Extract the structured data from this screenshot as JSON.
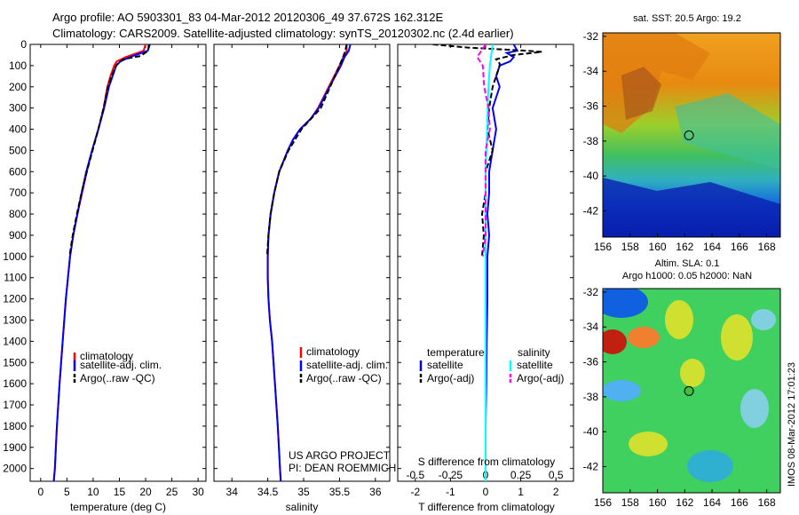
{
  "header": {
    "line1": "Argo profile: AO 5903301_83 04-Mar-2012 20120306_49 37.672S 162.312E",
    "line2": "Climatology: CARS2009. Satellite-adjusted climatology: synTS_20120302.nc (2.4d earlier)"
  },
  "colors": {
    "climatology": "#ff0000",
    "satellite": "#0000ff",
    "argo": "#000000",
    "sal_satellite": "#00ffff",
    "sal_argo": "#ff00ff"
  },
  "chart_data": [
    {
      "id": "temperature",
      "type": "line",
      "xlabel": "temperature (deg C)",
      "ylabel": "",
      "xlim": [
        -2,
        31.5
      ],
      "ylim": [
        2060,
        0
      ],
      "xticks": [
        "0",
        "5",
        "10",
        "15",
        "20",
        "25",
        "30"
      ],
      "yticks": [
        "0",
        "100",
        "200",
        "300",
        "400",
        "500",
        "600",
        "700",
        "800",
        "900",
        "1000",
        "1100",
        "1200",
        "1300",
        "1400",
        "1500",
        "1600",
        "1700",
        "1800",
        "1900",
        "2000"
      ],
      "legend": [
        "climatology",
        "satellite-adj. clim.",
        "Argo(..raw -QC)"
      ],
      "series": [
        {
          "name": "climatology",
          "depth": [
            0,
            30,
            60,
            80,
            100,
            150,
            200,
            300,
            400,
            500,
            600,
            700,
            800,
            900,
            1000,
            1200,
            1400,
            1600,
            1800,
            2000,
            2060
          ],
          "values": [
            20.0,
            19.6,
            16.2,
            14.5,
            14.0,
            13.3,
            12.7,
            12.0,
            11.0,
            9.8,
            8.8,
            7.9,
            7.0,
            6.2,
            5.6,
            4.8,
            4.2,
            3.6,
            3.1,
            2.7,
            2.5
          ]
        },
        {
          "name": "satellite-adj. clim.",
          "depth": [
            0,
            30,
            60,
            80,
            100,
            150,
            200,
            300,
            400,
            500,
            600,
            700,
            800,
            900,
            1000,
            1200,
            1400,
            1600,
            1800,
            2000,
            2060
          ],
          "values": [
            20.8,
            20.4,
            17.0,
            15.2,
            14.4,
            13.7,
            13.0,
            12.1,
            11.0,
            9.8,
            8.7,
            7.8,
            7.0,
            6.2,
            5.6,
            4.8,
            4.2,
            3.6,
            3.1,
            2.7,
            2.5
          ]
        },
        {
          "name": "Argo(..raw -QC)",
          "depth": [
            0,
            30,
            55,
            70,
            85,
            100,
            150,
            200,
            300,
            400,
            500,
            600,
            700,
            800,
            900,
            1000
          ],
          "values": [
            20.6,
            20.5,
            19.0,
            15.8,
            14.9,
            14.4,
            13.5,
            12.8,
            12.0,
            11.0,
            9.9,
            8.8,
            7.8,
            6.9,
            6.1,
            5.5
          ]
        }
      ]
    },
    {
      "id": "salinity",
      "type": "line",
      "xlabel": "salinity",
      "xlim": [
        33.75,
        36.2
      ],
      "ylim": [
        2060,
        0
      ],
      "xticks": [
        "34",
        "34.5",
        "35",
        "35.5",
        "36"
      ],
      "legend": [
        "climatology",
        "satellite-adj. clim.",
        "Argo(..raw -QC)"
      ],
      "series": [
        {
          "name": "climatology",
          "depth": [
            0,
            30,
            60,
            100,
            200,
            300,
            350,
            400,
            450,
            500,
            600,
            700,
            800,
            900,
            1000,
            1100,
            1200,
            1300,
            1400,
            1600,
            1800,
            2000,
            2060
          ],
          "values": [
            35.6,
            35.6,
            35.55,
            35.5,
            35.35,
            35.2,
            35.1,
            34.95,
            34.85,
            34.78,
            34.66,
            34.59,
            34.54,
            34.51,
            34.5,
            34.5,
            34.51,
            34.53,
            34.56,
            34.6,
            34.64,
            34.67,
            34.68
          ]
        },
        {
          "name": "satellite-adj. clim.",
          "depth": [
            0,
            30,
            60,
            100,
            200,
            300,
            350,
            400,
            450,
            500,
            600,
            700,
            800,
            900,
            1000,
            1100,
            1200,
            1300,
            1400,
            1600,
            1800,
            2000,
            2060
          ],
          "values": [
            35.65,
            35.63,
            35.57,
            35.52,
            35.36,
            35.21,
            35.1,
            34.95,
            34.85,
            34.78,
            34.66,
            34.59,
            34.54,
            34.51,
            34.5,
            34.5,
            34.51,
            34.53,
            34.56,
            34.6,
            34.64,
            34.67,
            34.68
          ]
        },
        {
          "name": "Argo(..raw -QC)",
          "depth": [
            0,
            30,
            60,
            100,
            200,
            300,
            400,
            500,
            600,
            700,
            800,
            900,
            1000
          ],
          "values": [
            35.6,
            35.58,
            35.55,
            35.5,
            35.37,
            35.24,
            34.97,
            34.79,
            34.66,
            34.59,
            34.54,
            34.51,
            34.49
          ]
        }
      ]
    },
    {
      "id": "difference",
      "type": "line",
      "xlabel": "T difference from climatology",
      "x2label": "S difference from climatology",
      "xlim": [
        -2.5,
        2.5
      ],
      "x2lim": [
        -0.625,
        0.625
      ],
      "ylim": [
        2060,
        0
      ],
      "xticks": [
        "-2",
        "-1",
        "0",
        "1",
        "2"
      ],
      "x2ticks": [
        "-0.5",
        "-0.25",
        "0",
        "0.25",
        "0.5"
      ],
      "legend_temperature_title": "temperature",
      "legend_salinity_title": "salinity",
      "legend": {
        "t_sat": "satellite",
        "t_argo": "Argo(-adj)",
        "s_sat": "satellite",
        "s_argo": "Argo(-adj)"
      },
      "series": [
        {
          "name": "T satellite",
          "axis": "T",
          "depth": [
            0,
            30,
            40,
            60,
            80,
            100,
            150,
            200,
            300,
            400,
            500,
            600,
            700,
            800,
            900,
            1000,
            1200,
            1400,
            1600,
            1800,
            2000,
            2060
          ],
          "values": [
            0.8,
            0.9,
            0.6,
            0.8,
            0.7,
            0.4,
            0.3,
            0.4,
            0.2,
            0.3,
            0.2,
            0.1,
            0.1,
            0.05,
            0.1,
            0.05,
            0.05,
            0.03,
            0.02,
            0.0,
            0.0,
            0.0
          ]
        },
        {
          "name": "T Argo(-adj)",
          "axis": "T",
          "depth": [
            0,
            15,
            30,
            35,
            50,
            70,
            90,
            100,
            150,
            200,
            300,
            400,
            500,
            600,
            700,
            800,
            900,
            1000
          ],
          "values": [
            -1.5,
            -0.5,
            1.2,
            1.6,
            0.8,
            0.3,
            0.4,
            0.4,
            0.3,
            0.2,
            0.1,
            0.05,
            0.2,
            0.0,
            0.0,
            -0.1,
            -0.05,
            -0.1
          ]
        },
        {
          "name": "S satellite",
          "axis": "S",
          "depth": [
            0,
            100,
            200,
            400,
            600,
            800,
            1000,
            1200,
            1400,
            1600,
            1800,
            2000,
            2060
          ],
          "values": [
            0.05,
            0.03,
            0.02,
            0.01,
            0.0,
            0.0,
            0.0,
            0.0,
            0.0,
            0.0,
            0.0,
            0.0,
            0.0
          ]
        },
        {
          "name": "S Argo(-adj)",
          "axis": "S",
          "depth": [
            0,
            30,
            60,
            100,
            200,
            300,
            400,
            500,
            600,
            700,
            800,
            900,
            1000
          ],
          "values": [
            0.0,
            -0.03,
            -0.06,
            -0.02,
            -0.01,
            0.02,
            0.03,
            0.0,
            0.0,
            0.0,
            0.0,
            0.0,
            -0.02
          ]
        }
      ]
    },
    {
      "id": "sst_map",
      "type": "heatmap",
      "title": "sat. SST: 20.5  Argo: 19.2",
      "xlim": [
        156,
        169
      ],
      "ylim": [
        -43.5,
        -31.8
      ],
      "xticks": [
        "156",
        "158",
        "160",
        "162",
        "164",
        "166",
        "168"
      ],
      "yticks": [
        "-32",
        "-34",
        "-36",
        "-38",
        "-40",
        "-42"
      ],
      "marker": {
        "lon": 162.31,
        "lat": -37.67
      }
    },
    {
      "id": "sla_map",
      "type": "heatmap",
      "title": "Altim. SLA: 0.1",
      "subtitle": "Argo h1000: 0.05 h2000: NaN",
      "xlim": [
        156,
        169
      ],
      "ylim": [
        -43.5,
        -31.8
      ],
      "xticks": [
        "156",
        "158",
        "160",
        "162",
        "164",
        "166",
        "168"
      ],
      "yticks": [
        "-32",
        "-34",
        "-36",
        "-38",
        "-40",
        "-42"
      ],
      "marker": {
        "lon": 162.31,
        "lat": -37.67
      }
    }
  ],
  "annotations": {
    "project": "US ARGO PROJECT",
    "pi": "PI: DEAN ROEMMICH",
    "stamp": "IMOS 08-Mar-2012 17:01:23"
  }
}
